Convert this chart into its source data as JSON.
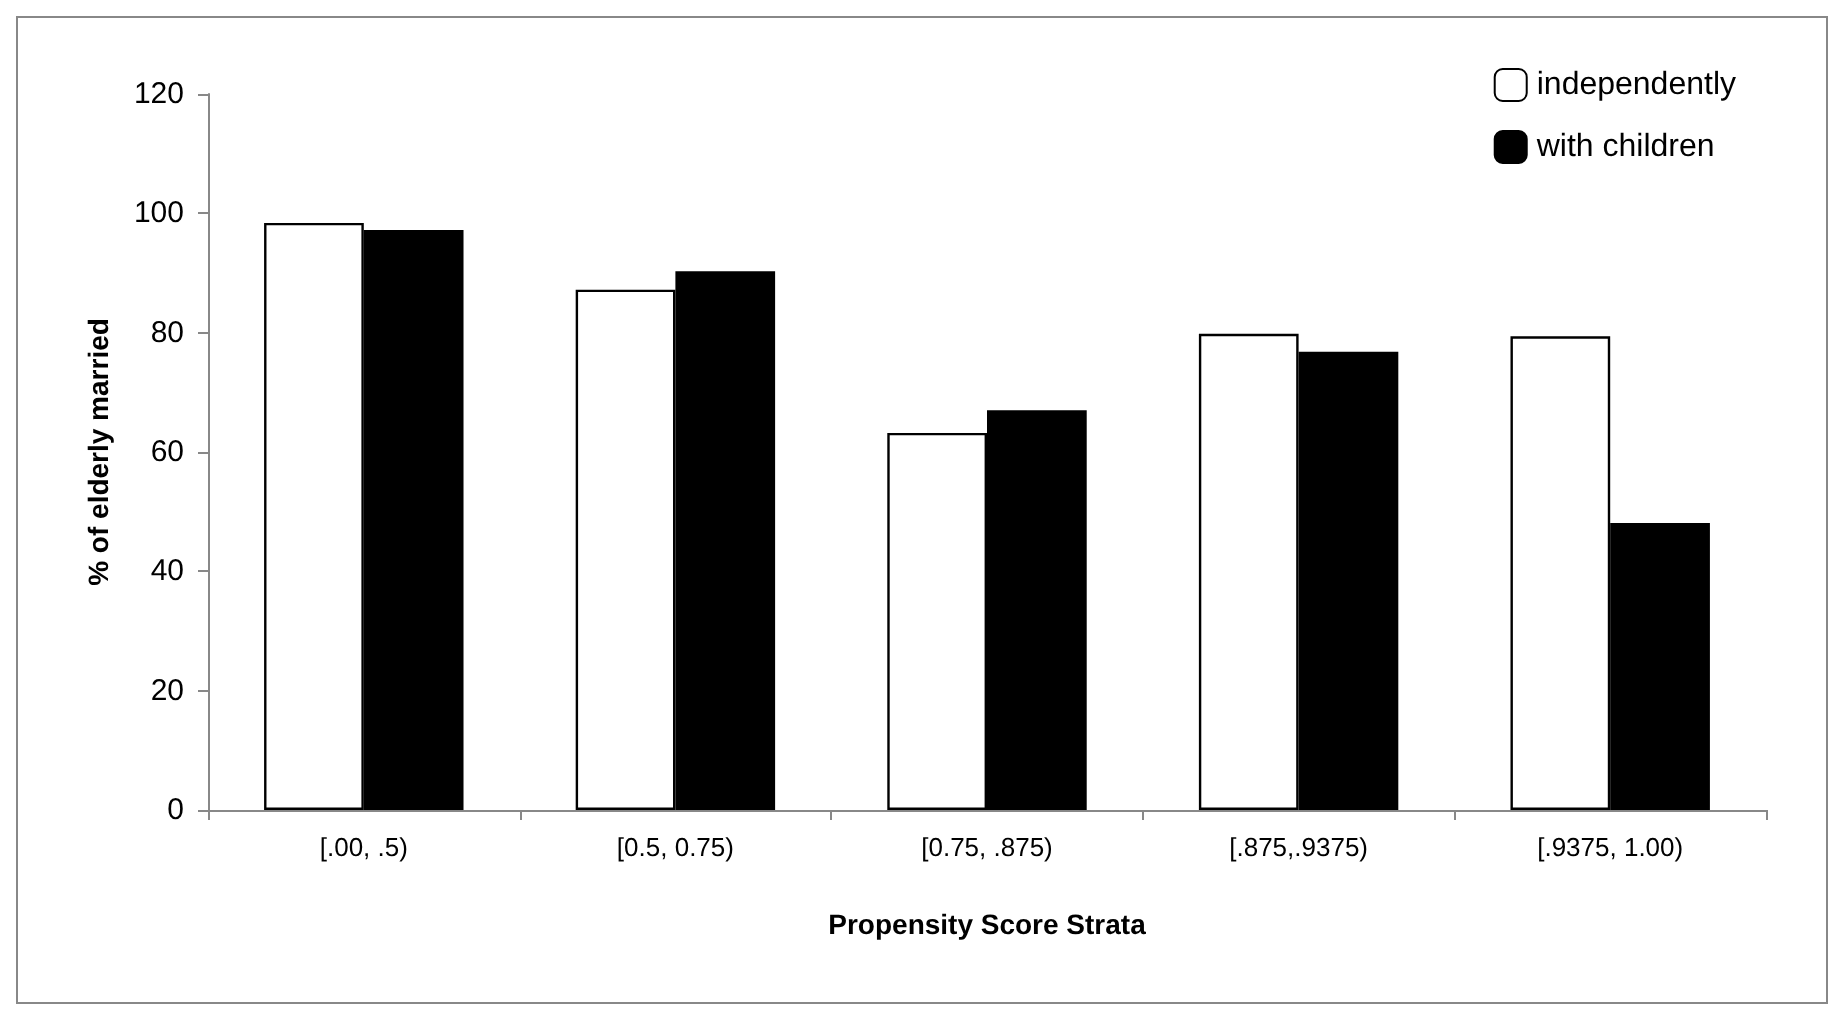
{
  "chart_data": {
    "type": "bar",
    "xlabel": "Propensity Score Strata",
    "ylabel": "% of elderly married",
    "categories": [
      "[.00, .5)",
      "[0.5, 0.75)",
      "[0.75, .875)",
      "[.875,.9375)",
      "[.9375, 1.00)"
    ],
    "series": [
      {
        "name": "independently",
        "color": "#ffffff",
        "values": [
          98.4,
          87.2,
          63.2,
          79.8,
          79.4
        ]
      },
      {
        "name": "with children",
        "color": "#000000",
        "values": [
          97.2,
          90.3,
          67.0,
          76.8,
          48.1
        ]
      }
    ],
    "ylim": [
      0,
      120
    ],
    "yticks": [
      0,
      20,
      40,
      60,
      80,
      100,
      120
    ],
    "grid": false,
    "legend": "top right"
  }
}
